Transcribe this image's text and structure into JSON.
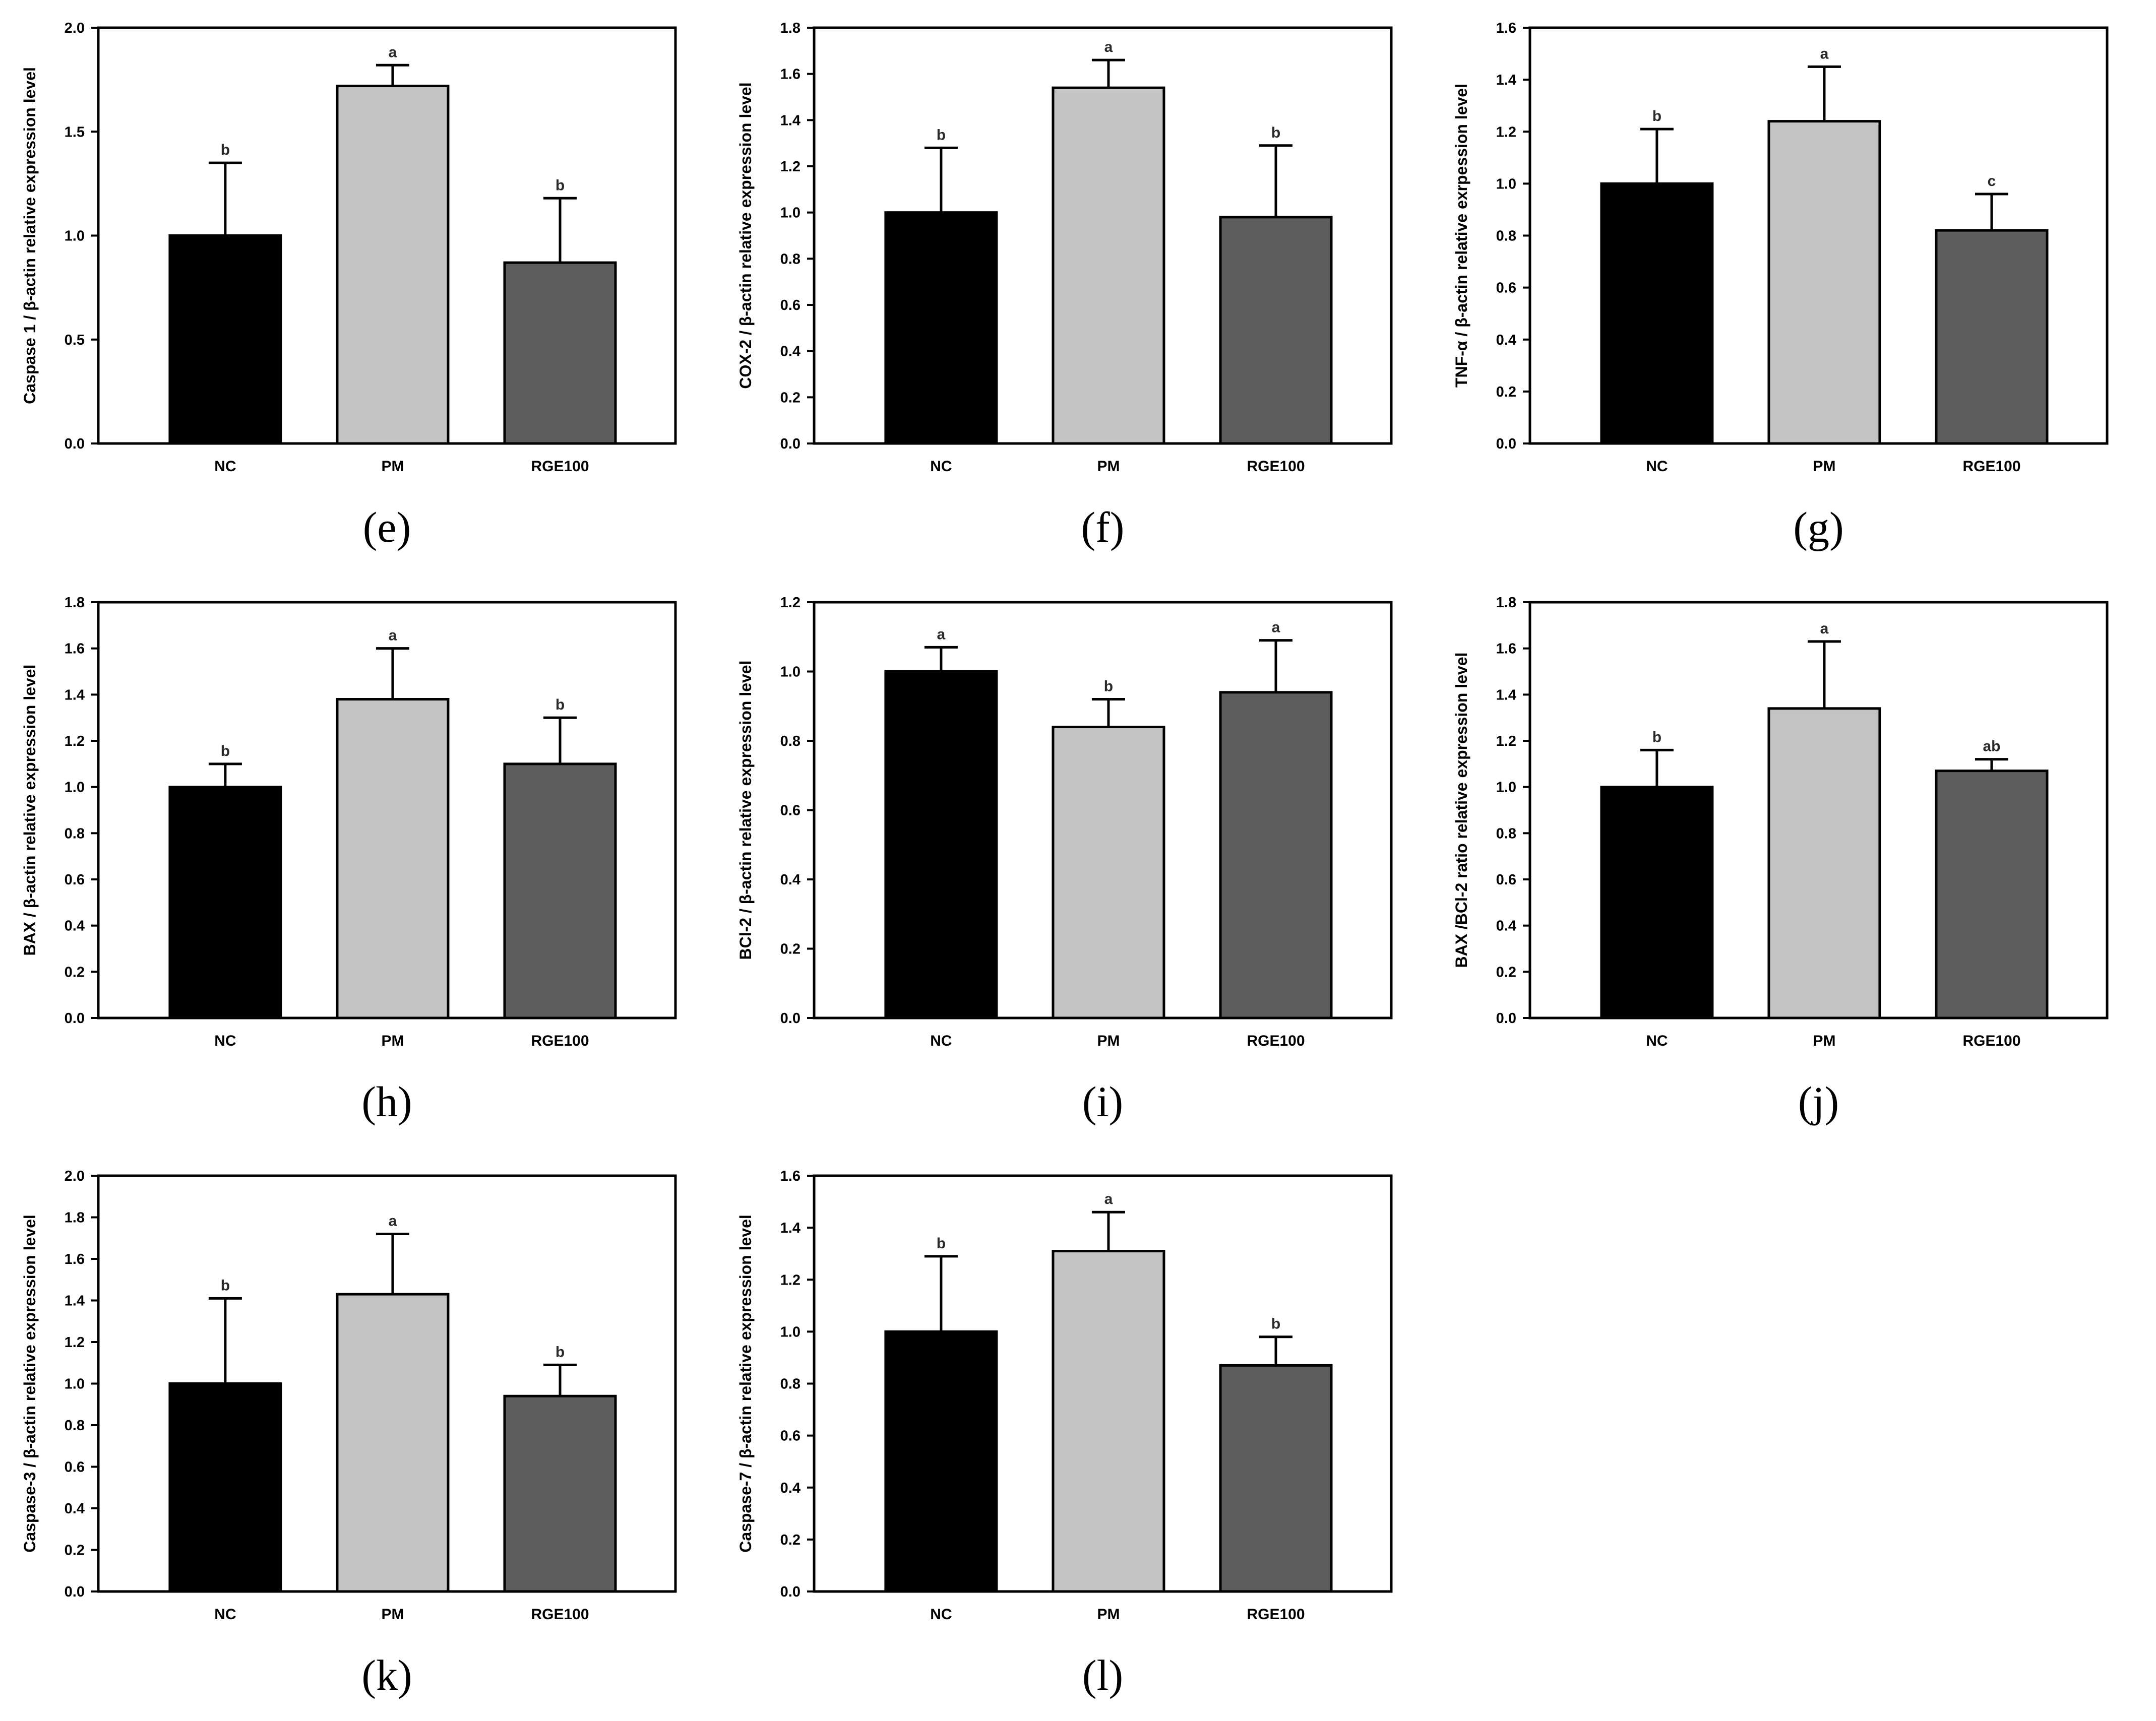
{
  "figure": {
    "background": "#ffffff",
    "text_color": "#000000",
    "axis_color": "#000000",
    "sig_letter_color": "#2a2a2a",
    "groups": [
      "NC",
      "PM",
      "RGE100"
    ],
    "bar_colors": {
      "NC": "#000000",
      "PM": "#c4c4c4",
      "RGE100": "#5d5d5d"
    }
  },
  "chart_data": [
    {
      "panel_label": "(e)",
      "type": "bar",
      "title": "",
      "xlabel": "",
      "ylabel": "Caspase 1 / β-actin relative expression level",
      "ylim": [
        0,
        2.0
      ],
      "ytick_step": 0.5,
      "grid": false,
      "legend": false,
      "categories": [
        "NC",
        "PM",
        "RGE100"
      ],
      "values": [
        1.0,
        1.72,
        0.87
      ],
      "error_top": [
        1.35,
        1.82,
        1.18
      ],
      "sig_letters": [
        "b",
        "a",
        "b"
      ]
    },
    {
      "panel_label": "(f)",
      "type": "bar",
      "title": "",
      "xlabel": "",
      "ylabel": "COX-2 / β-actin relative expression level",
      "ylim": [
        0,
        1.8
      ],
      "ytick_step": 0.2,
      "grid": false,
      "legend": false,
      "categories": [
        "NC",
        "PM",
        "RGE100"
      ],
      "values": [
        1.0,
        1.54,
        0.98
      ],
      "error_top": [
        1.28,
        1.66,
        1.29
      ],
      "sig_letters": [
        "b",
        "a",
        "b"
      ]
    },
    {
      "panel_label": "(g)",
      "type": "bar",
      "title": "",
      "xlabel": "",
      "ylabel": "TNF-α / β-actin relative exrpession level",
      "ylim": [
        0,
        1.6
      ],
      "ytick_step": 0.2,
      "grid": false,
      "legend": false,
      "categories": [
        "NC",
        "PM",
        "RGE100"
      ],
      "values": [
        1.0,
        1.24,
        0.82
      ],
      "error_top": [
        1.21,
        1.45,
        0.96
      ],
      "sig_letters": [
        "b",
        "a",
        "c"
      ]
    },
    {
      "panel_label": "(h)",
      "type": "bar",
      "title": "",
      "xlabel": "",
      "ylabel": "BAX / β-actin relative expression level",
      "ylim": [
        0,
        1.8
      ],
      "ytick_step": 0.2,
      "grid": false,
      "legend": false,
      "categories": [
        "NC",
        "PM",
        "RGE100"
      ],
      "values": [
        1.0,
        1.38,
        1.1
      ],
      "error_top": [
        1.1,
        1.6,
        1.3
      ],
      "sig_letters": [
        "b",
        "a",
        "b"
      ]
    },
    {
      "panel_label": "(i)",
      "type": "bar",
      "title": "",
      "xlabel": "",
      "ylabel": "BCl-2 / β-actin relative expression level",
      "ylim": [
        0,
        1.2
      ],
      "ytick_step": 0.2,
      "grid": false,
      "legend": false,
      "categories": [
        "NC",
        "PM",
        "RGE100"
      ],
      "values": [
        1.0,
        0.84,
        0.94
      ],
      "error_top": [
        1.07,
        0.92,
        1.09
      ],
      "sig_letters": [
        "a",
        "b",
        "a"
      ]
    },
    {
      "panel_label": "(j)",
      "type": "bar",
      "title": "",
      "xlabel": "",
      "ylabel": "BAX /BCl-2 ratio relative expression level",
      "ylim": [
        0,
        1.8
      ],
      "ytick_step": 0.2,
      "grid": false,
      "legend": false,
      "categories": [
        "NC",
        "PM",
        "RGE100"
      ],
      "values": [
        1.0,
        1.34,
        1.07
      ],
      "error_top": [
        1.16,
        1.63,
        1.12
      ],
      "sig_letters": [
        "b",
        "a",
        "ab"
      ]
    },
    {
      "panel_label": "(k)",
      "type": "bar",
      "title": "",
      "xlabel": "",
      "ylabel": "Caspase-3 / β-actin relative expression level",
      "ylim": [
        0,
        2.0
      ],
      "ytick_step": 0.2,
      "grid": false,
      "legend": false,
      "categories": [
        "NC",
        "PM",
        "RGE100"
      ],
      "values": [
        1.0,
        1.43,
        0.94
      ],
      "error_top": [
        1.41,
        1.72,
        1.09
      ],
      "sig_letters": [
        "b",
        "a",
        "b"
      ]
    },
    {
      "panel_label": "(l)",
      "type": "bar",
      "title": "",
      "xlabel": "",
      "ylabel": "Caspase-7 / β-actin relative expression level",
      "ylim": [
        0,
        1.6
      ],
      "ytick_step": 0.2,
      "grid": false,
      "legend": false,
      "categories": [
        "NC",
        "PM",
        "RGE100"
      ],
      "values": [
        1.0,
        1.31,
        0.87
      ],
      "error_top": [
        1.29,
        1.46,
        0.98
      ],
      "sig_letters": [
        "b",
        "a",
        "b"
      ]
    }
  ]
}
